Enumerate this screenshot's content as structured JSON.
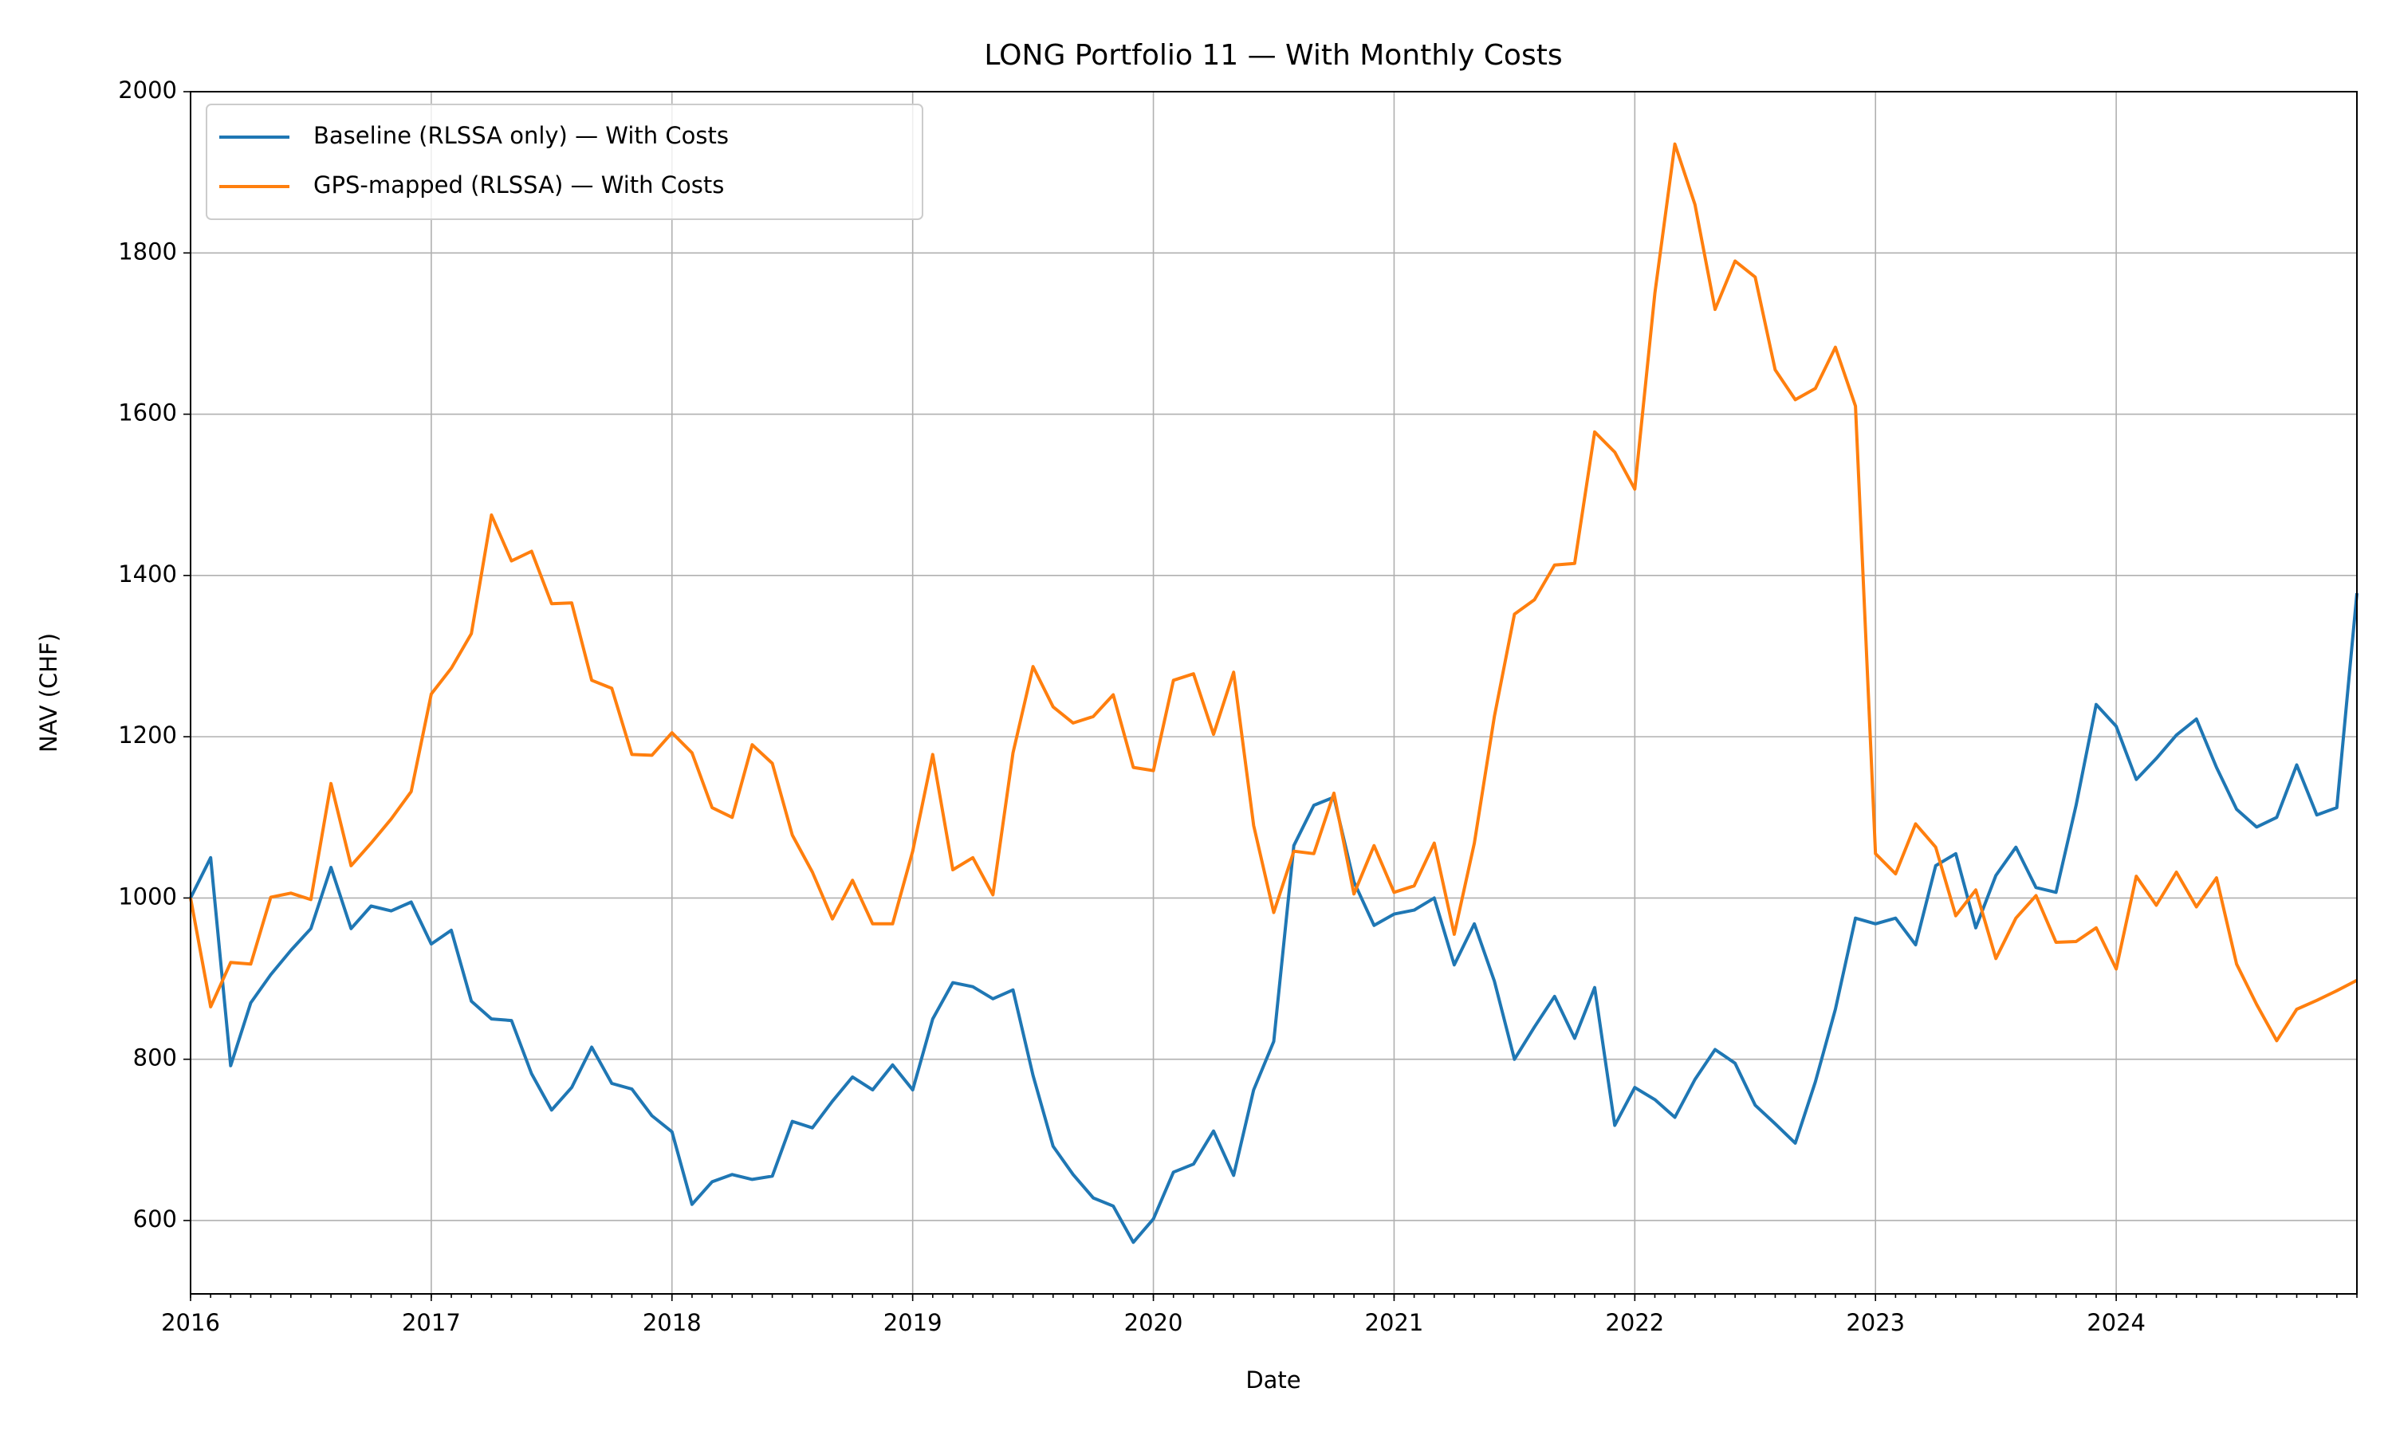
{
  "chart_data": {
    "type": "line",
    "title": "LONG Portfolio 11 — With Monthly Costs",
    "x_label": "Date",
    "y_label": "NAV (CHF)",
    "x": [
      "2016-01",
      "2016-02",
      "2016-03",
      "2016-04",
      "2016-05",
      "2016-06",
      "2016-07",
      "2016-08",
      "2016-09",
      "2016-10",
      "2016-11",
      "2016-12",
      "2017-01",
      "2017-02",
      "2017-03",
      "2017-04",
      "2017-05",
      "2017-06",
      "2017-07",
      "2017-08",
      "2017-09",
      "2017-10",
      "2017-11",
      "2017-12",
      "2018-01",
      "2018-02",
      "2018-03",
      "2018-04",
      "2018-05",
      "2018-06",
      "2018-07",
      "2018-08",
      "2018-09",
      "2018-10",
      "2018-11",
      "2018-12",
      "2019-01",
      "2019-02",
      "2019-03",
      "2019-04",
      "2019-05",
      "2019-06",
      "2019-07",
      "2019-08",
      "2019-09",
      "2019-10",
      "2019-11",
      "2019-12",
      "2020-01",
      "2020-02",
      "2020-03",
      "2020-04",
      "2020-05",
      "2020-06",
      "2020-07",
      "2020-08",
      "2020-09",
      "2020-10",
      "2020-11",
      "2020-12",
      "2021-01",
      "2021-02",
      "2021-03",
      "2021-04",
      "2021-05",
      "2021-06",
      "2021-07",
      "2021-08",
      "2021-09",
      "2021-10",
      "2021-11",
      "2021-12",
      "2022-01",
      "2022-02",
      "2022-03",
      "2022-04",
      "2022-05",
      "2022-06",
      "2022-07",
      "2022-08",
      "2022-09",
      "2022-10",
      "2022-11",
      "2022-12",
      "2023-01",
      "2023-02",
      "2023-03",
      "2023-04",
      "2023-05",
      "2023-06",
      "2023-07",
      "2023-08",
      "2023-09",
      "2023-10",
      "2023-11",
      "2023-12",
      "2024-01",
      "2024-02",
      "2024-03",
      "2024-04",
      "2024-05",
      "2024-06",
      "2024-07",
      "2024-08",
      "2024-09",
      "2024-10",
      "2024-11",
      "2024-12",
      "2025-01"
    ],
    "series": [
      {
        "name": "Baseline (RLSSA only) — With Costs",
        "color": "#1f77b4",
        "values": [
          1000,
          1050,
          792,
          870,
          905,
          935,
          962,
          1038,
          962,
          990,
          984,
          995,
          943,
          960,
          872,
          850,
          848,
          782,
          737,
          765,
          815,
          770,
          763,
          730,
          710,
          620,
          648,
          657,
          651,
          655,
          723,
          715,
          748,
          778,
          762,
          793,
          762,
          850,
          895,
          890,
          875,
          886,
          780,
          692,
          657,
          628,
          618,
          573,
          602,
          660,
          670,
          711,
          656,
          762,
          822,
          1065,
          1115,
          1125,
          1020,
          966,
          980,
          985,
          1000,
          917,
          968,
          897,
          800,
          840,
          878,
          826,
          889,
          718,
          765,
          750,
          728,
          775,
          812,
          795,
          743,
          720,
          696,
          772,
          862,
          975,
          968,
          975,
          942,
          1040,
          1055,
          963,
          1028,
          1063,
          1013,
          1007,
          1115,
          1240,
          1213,
          1147,
          1173,
          1202,
          1222,
          1162,
          1110,
          1088,
          1100,
          1165,
          1103,
          1112,
          1378
        ]
      },
      {
        "name": "GPS-mapped (RLSSA) — With Costs",
        "color": "#ff7f0e",
        "values": [
          1000,
          865,
          920,
          918,
          1001,
          1006,
          998,
          1142,
          1040,
          1068,
          1098,
          1132,
          1253,
          1285,
          1328,
          1475,
          1418,
          1430,
          1365,
          1366,
          1270,
          1260,
          1178,
          1177,
          1205,
          1180,
          1112,
          1100,
          1190,
          1167,
          1078,
          1032,
          974,
          1022,
          968,
          968,
          1058,
          1178,
          1035,
          1050,
          1004,
          1180,
          1287,
          1237,
          1217,
          1225,
          1252,
          1162,
          1158,
          1270,
          1278,
          1203,
          1280,
          1090,
          982,
          1058,
          1055,
          1130,
          1005,
          1065,
          1007,
          1015,
          1068,
          955,
          1068,
          1225,
          1352,
          1370,
          1413,
          1415,
          1578,
          1553,
          1507,
          1750,
          1935,
          1860,
          1730,
          1790,
          1770,
          1655,
          1618,
          1632,
          1683,
          1610,
          1055,
          1030,
          1092,
          1063,
          978,
          1010,
          925,
          975,
          1003,
          945,
          946,
          963,
          912,
          1027,
          991,
          1032,
          989,
          1025,
          918,
          868,
          823,
          862,
          873,
          885,
          898
        ]
      }
    ],
    "xlim": [
      "2016-01",
      "2025-01"
    ],
    "xticks": [
      {
        "value": "2016-01",
        "label": "2016"
      },
      {
        "value": "2017-01",
        "label": "2017"
      },
      {
        "value": "2018-01",
        "label": "2018"
      },
      {
        "value": "2019-01",
        "label": "2019"
      },
      {
        "value": "2020-01",
        "label": "2020"
      },
      {
        "value": "2021-01",
        "label": "2021"
      },
      {
        "value": "2022-01",
        "label": "2022"
      },
      {
        "value": "2023-01",
        "label": "2023"
      },
      {
        "value": "2024-01",
        "label": "2024"
      }
    ],
    "ylim": [
      509,
      2000
    ],
    "yticks": [
      600,
      800,
      1000,
      1200,
      1400,
      1600,
      1800,
      2000
    ],
    "grid": true,
    "legend": "upper left"
  }
}
